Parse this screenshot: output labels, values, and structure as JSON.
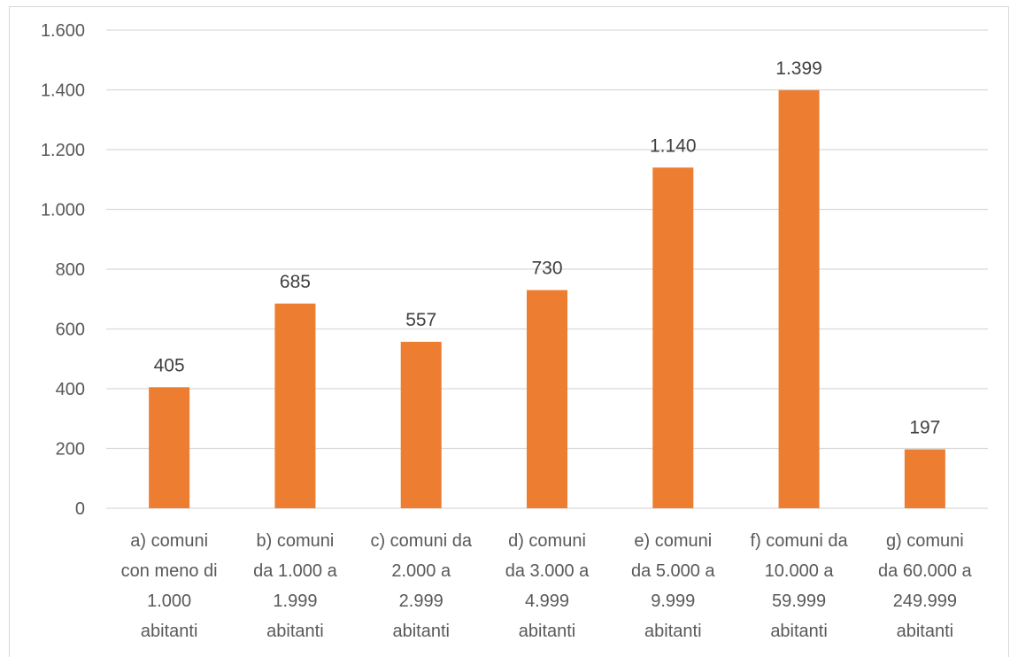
{
  "chart_data": {
    "type": "bar",
    "categories": [
      [
        "a) comuni",
        "con meno di",
        "1.000",
        "abitanti"
      ],
      [
        "b) comuni",
        "da 1.000 a",
        "1.999",
        "abitanti"
      ],
      [
        "c) comuni da",
        "2.000 a",
        "2.999",
        "abitanti"
      ],
      [
        "d) comuni",
        "da 3.000 a",
        "4.999",
        "abitanti"
      ],
      [
        "e) comuni",
        "da 5.000 a",
        "9.999",
        "abitanti"
      ],
      [
        "f) comuni da",
        "10.000 a",
        "59.999",
        "abitanti"
      ],
      [
        "g) comuni",
        "da 60.000 a",
        "249.999",
        "abitanti"
      ]
    ],
    "values": [
      405,
      685,
      557,
      730,
      1140,
      1399,
      197
    ],
    "value_labels": [
      "405",
      "685",
      "557",
      "730",
      "1.140",
      "1.399",
      "197"
    ],
    "y_ticks": [
      0,
      200,
      400,
      600,
      800,
      1000,
      1200,
      1400,
      1600
    ],
    "y_tick_labels": [
      "0",
      "200",
      "400",
      "600",
      "800",
      "1.000",
      "1.200",
      "1.400",
      "1.600"
    ],
    "ylim": [
      0,
      1600
    ],
    "grid": true,
    "legend": "none",
    "colors": {
      "bar": "#ED7D31",
      "grid": "#d9d9d9",
      "axis_text": "#595959",
      "label_text": "#404040"
    }
  }
}
